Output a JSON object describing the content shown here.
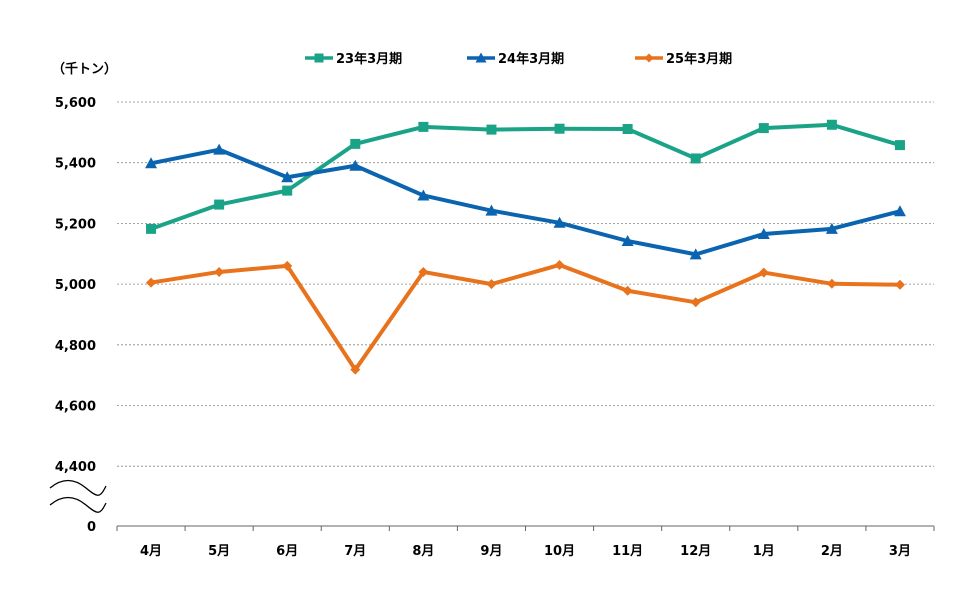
{
  "chart_data": {
    "type": "line",
    "unit_label": "（千トン）",
    "categories": [
      "4月",
      "5月",
      "6月",
      "7月",
      "8月",
      "9月",
      "10月",
      "11月",
      "12月",
      "1月",
      "2月",
      "3月"
    ],
    "y_ticks": [
      "5,600",
      "5,400",
      "5,200",
      "5,000",
      "4,800",
      "4,600",
      "4,400",
      "0"
    ],
    "ylim": [
      4400,
      5600
    ],
    "axis_break": true,
    "grid": "horizontal dotted",
    "legend_position": "top",
    "series": [
      {
        "name": "23年3月期",
        "color": "#1aa386",
        "marker": "square",
        "values": [
          5182,
          5262,
          5308,
          5462,
          5518,
          5509,
          5512,
          5511,
          5414,
          5514,
          5525,
          5458
        ]
      },
      {
        "name": "24年3月期",
        "color": "#0b64b0",
        "marker": "triangle",
        "values": [
          5398,
          5443,
          5352,
          5390,
          5292,
          5242,
          5202,
          5142,
          5098,
          5165,
          5182,
          5240
        ]
      },
      {
        "name": "25年3月期",
        "color": "#e8731c",
        "marker": "diamond",
        "values": [
          5005,
          5040,
          5060,
          4718,
          5040,
          5000,
          5063,
          4978,
          4940,
          5038,
          5001,
          4998
        ]
      }
    ]
  }
}
